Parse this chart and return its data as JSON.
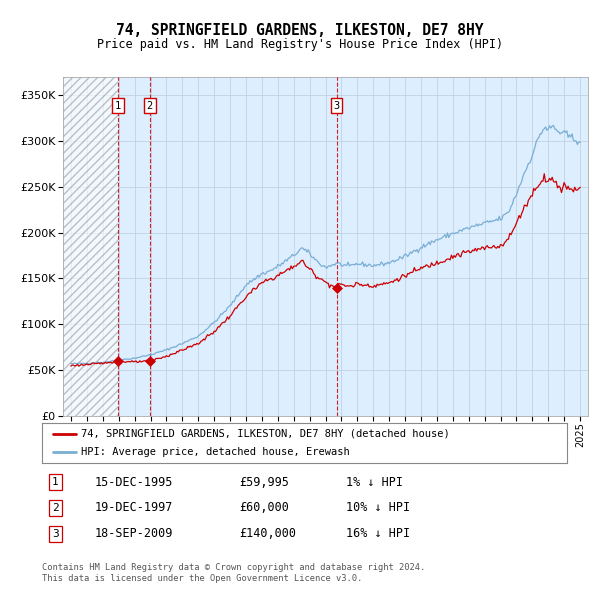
{
  "title": "74, SPRINGFIELD GARDENS, ILKESTON, DE7 8HY",
  "subtitle": "Price paid vs. HM Land Registry's House Price Index (HPI)",
  "legend_line1": "74, SPRINGFIELD GARDENS, ILKESTON, DE7 8HY (detached house)",
  "legend_line2": "HPI: Average price, detached house, Erewash",
  "footer1": "Contains HM Land Registry data © Crown copyright and database right 2024.",
  "footer2": "This data is licensed under the Open Government Licence v3.0.",
  "hpi_color": "#7aaed4",
  "price_color": "#cc0000",
  "marker_color": "#cc0000",
  "bg_color": "#ddeeff",
  "grid_color": "#bbccdd",
  "vline_color": "#cc0000",
  "transactions": [
    {
      "num": 1,
      "date_val": 1995.958,
      "price": 59995,
      "label": "1",
      "date_str": "15-DEC-1995",
      "price_str": "£59,995",
      "hpi_diff": "1% ↓ HPI"
    },
    {
      "num": 2,
      "date_val": 1997.958,
      "price": 60000,
      "label": "2",
      "date_str": "19-DEC-1997",
      "price_str": "£60,000",
      "hpi_diff": "10% ↓ HPI"
    },
    {
      "num": 3,
      "date_val": 2009.708,
      "price": 140000,
      "label": "3",
      "date_str": "18-SEP-2009",
      "price_str": "£140,000",
      "hpi_diff": "16% ↓ HPI"
    }
  ],
  "ylim": [
    0,
    370000
  ],
  "yticks": [
    0,
    50000,
    100000,
    150000,
    200000,
    250000,
    300000,
    350000
  ],
  "xlim_start": 1992.5,
  "xlim_end": 2025.5,
  "xticks": [
    1993,
    1994,
    1995,
    1996,
    1997,
    1998,
    1999,
    2000,
    2001,
    2002,
    2003,
    2004,
    2005,
    2006,
    2007,
    2008,
    2009,
    2010,
    2011,
    2012,
    2013,
    2014,
    2015,
    2016,
    2017,
    2018,
    2019,
    2020,
    2021,
    2022,
    2023,
    2024,
    2025
  ],
  "hpi_anchors": [
    [
      1993.0,
      57000
    ],
    [
      1994.0,
      57500
    ],
    [
      1995.0,
      58500
    ],
    [
      1995.958,
      60600
    ],
    [
      1996.5,
      62000
    ],
    [
      1997.0,
      63000
    ],
    [
      1997.958,
      66500
    ],
    [
      1999.0,
      72000
    ],
    [
      2000.0,
      79000
    ],
    [
      2001.0,
      87000
    ],
    [
      2002.0,
      102000
    ],
    [
      2003.0,
      120000
    ],
    [
      2004.0,
      143000
    ],
    [
      2005.0,
      155000
    ],
    [
      2005.5,
      158000
    ],
    [
      2006.0,
      163000
    ],
    [
      2007.0,
      175000
    ],
    [
      2007.5,
      183000
    ],
    [
      2008.0,
      177000
    ],
    [
      2008.5,
      168000
    ],
    [
      2009.0,
      162000
    ],
    [
      2009.708,
      166500
    ],
    [
      2010.0,
      165000
    ],
    [
      2010.5,
      163000
    ],
    [
      2011.0,
      166000
    ],
    [
      2012.0,
      164000
    ],
    [
      2013.0,
      167000
    ],
    [
      2014.0,
      174000
    ],
    [
      2015.0,
      184000
    ],
    [
      2016.0,
      192000
    ],
    [
      2017.0,
      199000
    ],
    [
      2018.0,
      205000
    ],
    [
      2019.0,
      210000
    ],
    [
      2020.0,
      215000
    ],
    [
      2020.5,
      222000
    ],
    [
      2021.0,
      242000
    ],
    [
      2021.5,
      265000
    ],
    [
      2022.0,
      285000
    ],
    [
      2022.5,
      308000
    ],
    [
      2022.8,
      315000
    ],
    [
      2023.0,
      312000
    ],
    [
      2023.3,
      316000
    ],
    [
      2023.6,
      310000
    ],
    [
      2024.0,
      308000
    ],
    [
      2024.5,
      303000
    ],
    [
      2024.9,
      300000
    ]
  ],
  "price_anchors": [
    [
      1993.0,
      55000
    ],
    [
      1994.0,
      56000
    ],
    [
      1995.0,
      57500
    ],
    [
      1995.958,
      59995
    ],
    [
      1996.5,
      59200
    ],
    [
      1997.0,
      58800
    ],
    [
      1997.958,
      60000
    ],
    [
      1999.0,
      65000
    ],
    [
      2000.0,
      72000
    ],
    [
      2001.0,
      79000
    ],
    [
      2002.0,
      92000
    ],
    [
      2003.0,
      109000
    ],
    [
      2004.0,
      130000
    ],
    [
      2005.0,
      145000
    ],
    [
      2005.5,
      149000
    ],
    [
      2006.0,
      153000
    ],
    [
      2007.0,
      163000
    ],
    [
      2007.5,
      169000
    ],
    [
      2008.0,
      160000
    ],
    [
      2008.5,
      152000
    ],
    [
      2009.0,
      146000
    ],
    [
      2009.708,
      140000
    ],
    [
      2010.0,
      144000
    ],
    [
      2010.5,
      141000
    ],
    [
      2011.0,
      144000
    ],
    [
      2012.0,
      142000
    ],
    [
      2013.0,
      145000
    ],
    [
      2014.0,
      153000
    ],
    [
      2015.0,
      161000
    ],
    [
      2016.0,
      167000
    ],
    [
      2017.0,
      174000
    ],
    [
      2018.0,
      179000
    ],
    [
      2019.0,
      183000
    ],
    [
      2020.0,
      186000
    ],
    [
      2020.5,
      193000
    ],
    [
      2021.0,
      210000
    ],
    [
      2021.5,
      228000
    ],
    [
      2022.0,
      242000
    ],
    [
      2022.5,
      256000
    ],
    [
      2022.8,
      260000
    ],
    [
      2023.0,
      257000
    ],
    [
      2023.3,
      259000
    ],
    [
      2023.5,
      252000
    ],
    [
      2023.8,
      248000
    ],
    [
      2024.0,
      252000
    ],
    [
      2024.5,
      246000
    ],
    [
      2024.9,
      250000
    ]
  ]
}
